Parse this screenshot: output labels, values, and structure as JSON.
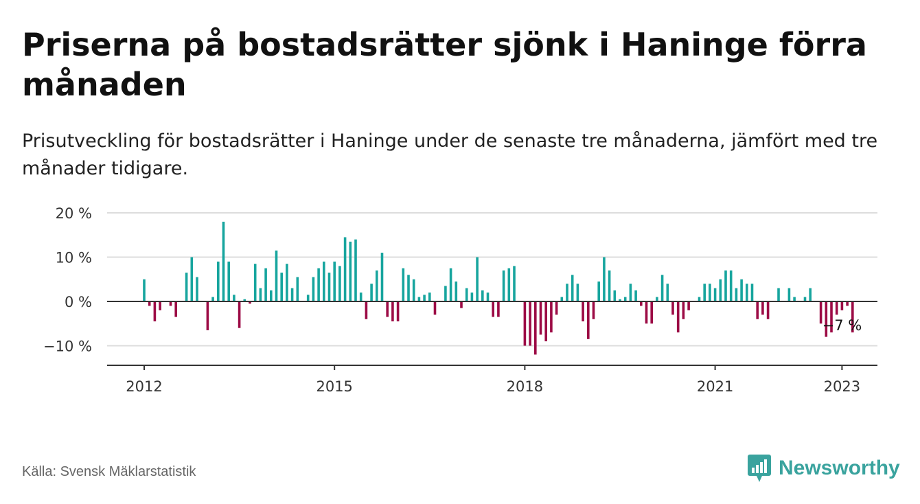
{
  "header": {
    "title": "Priserna på bostadsrätter sjönk i Haninge förra månaden",
    "subtitle": "Prisutveckling för bostadsrätter i Haninge under de senaste tre månaderna, jämfört med tre månader tidigare."
  },
  "footer": {
    "source": "Källa: Svensk Mäklarstatistik",
    "brand": "Newsworthy"
  },
  "colors": {
    "positive": "#17a59e",
    "negative": "#9c0b45",
    "brand": "#3aa39e",
    "grid": "#dddddd",
    "axis": "#333333"
  },
  "icons": {
    "logo": "newsworthy-logo-icon"
  },
  "chart_data": {
    "type": "bar",
    "ylim": [
      -14,
      20
    ],
    "yticks": [
      20,
      10,
      0,
      -10
    ],
    "ytick_labels": [
      "20 %",
      "10 %",
      "0 %",
      "−10 %"
    ],
    "xtick_labels": [
      {
        "label": "2012",
        "index": 0
      },
      {
        "label": "2015",
        "index": 36
      },
      {
        "label": "2018",
        "index": 72
      },
      {
        "label": "2021",
        "index": 108
      },
      {
        "label": "2023",
        "index": 132
      }
    ],
    "annotation": {
      "text": "−7 %",
      "index": 132
    },
    "x_start": "2012-01",
    "x_step": "month",
    "values": [
      5,
      -1,
      -4.5,
      -2,
      0,
      -1,
      -3.5,
      0,
      6.5,
      10,
      5.5,
      0,
      -6.5,
      1,
      9,
      18,
      9,
      1.5,
      -6,
      0.5,
      -0.5,
      8.5,
      3,
      7.5,
      2.5,
      11.5,
      6.5,
      8.5,
      3,
      5.5,
      0,
      1.5,
      5.5,
      7.5,
      9,
      6.5,
      9,
      8,
      14.5,
      13.5,
      14,
      2,
      -4,
      4,
      7,
      11,
      -3.5,
      -4.5,
      -4.5,
      7.5,
      6,
      5,
      1,
      1.5,
      2,
      -3,
      0,
      3.5,
      7.5,
      4.5,
      -1.5,
      3,
      2,
      10,
      2.5,
      2,
      -3.5,
      -3.5,
      7,
      7.5,
      8,
      0,
      -10,
      -10,
      -12,
      -7.5,
      -9,
      -7,
      -3,
      1,
      4,
      6,
      4,
      -4.5,
      -8.5,
      -4,
      4.5,
      10,
      7,
      2.5,
      0.5,
      1,
      4,
      2.5,
      -1,
      -5,
      -5,
      1,
      6,
      4,
      -3,
      -7,
      -4,
      -2,
      0,
      1,
      4,
      4,
      3,
      5,
      7,
      7,
      3,
      5,
      4,
      4,
      -4,
      -3,
      -4,
      0,
      3,
      0,
      3,
      1,
      0,
      1,
      3,
      0,
      -5,
      -8,
      -7,
      -3,
      -2,
      -1,
      -7
    ]
  }
}
